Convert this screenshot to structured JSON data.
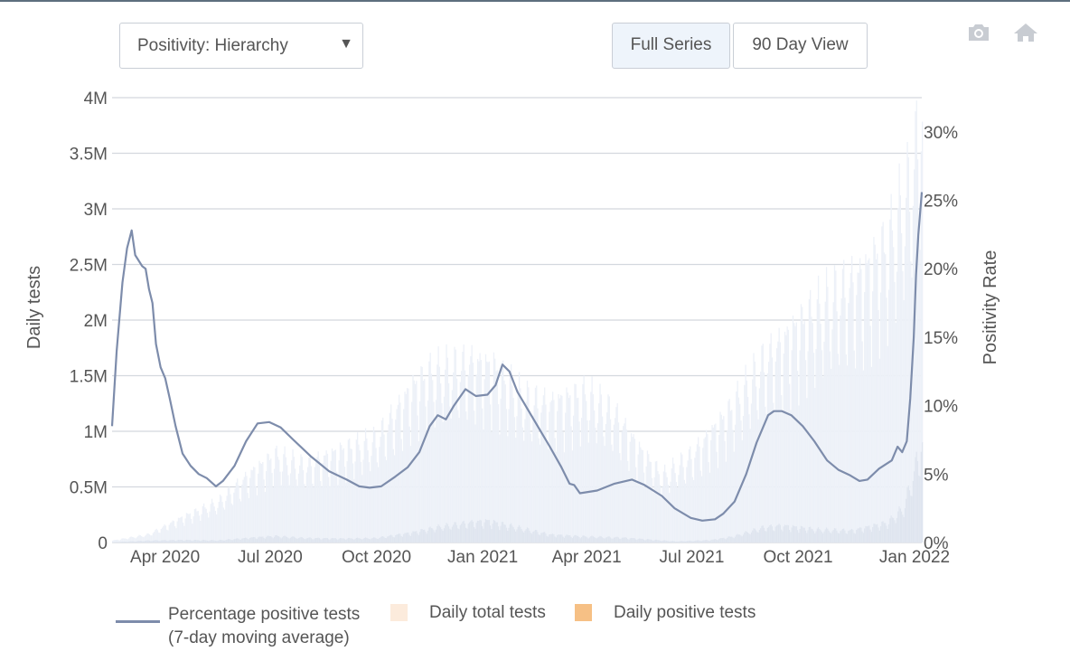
{
  "controls": {
    "dropdown_label": "Positivity: Hierarchy",
    "buttons": [
      {
        "label": "Full Series",
        "active": true
      },
      {
        "label": "90 Day View",
        "active": false
      }
    ],
    "icons": [
      "camera-icon",
      "home-icon"
    ]
  },
  "colors": {
    "positivity_line": "#7d8cab",
    "daily_total_tests": "#fcebdc",
    "daily_positive_tests": "#f6c085",
    "daily_total_bars_render": "#edf1f8",
    "daily_positive_bars_render": "#dfe5ef",
    "grid": "#d4d8de"
  },
  "chart_data": {
    "type": "line",
    "title": "",
    "xlabel": "",
    "ylabel": "Daily tests",
    "y2label": "Positivity Rate",
    "ylim": [
      0,
      4000000
    ],
    "y2lim": [
      0,
      32.5
    ],
    "yticks": [
      "0",
      "0.5M",
      "1M",
      "1.5M",
      "2M",
      "2.5M",
      "3M",
      "3.5M",
      "4M"
    ],
    "y2ticks": [
      "0%",
      "5%",
      "10%",
      "15%",
      "20%",
      "25%",
      "30%"
    ],
    "xticks": [
      "Apr 2020",
      "Jul 2020",
      "Oct 2020",
      "Jan 2021",
      "Apr 2021",
      "Jul 2021",
      "Oct 2021",
      "Jan 2022"
    ],
    "grid": true,
    "legend_position": "bottom",
    "legend": [
      {
        "label": "Percentage positive tests",
        "sublabel": "(7-day moving average)",
        "symbol": "line"
      },
      {
        "label": "Daily total tests",
        "symbol": "square"
      },
      {
        "label": "Daily positive tests",
        "symbol": "square"
      }
    ],
    "series": [
      {
        "name": "Percentage positive tests (7-day moving average)",
        "axis": "right",
        "points": [
          [
            "2020-03-01",
            8.5
          ],
          [
            "2020-03-05",
            14.0
          ],
          [
            "2020-03-10",
            19.0
          ],
          [
            "2020-03-14",
            21.5
          ],
          [
            "2020-03-18",
            22.8
          ],
          [
            "2020-03-21",
            21.0
          ],
          [
            "2020-03-24",
            20.6
          ],
          [
            "2020-03-27",
            20.2
          ],
          [
            "2020-03-30",
            20.0
          ],
          [
            "2020-04-02",
            18.5
          ],
          [
            "2020-04-05",
            17.5
          ],
          [
            "2020-04-08",
            14.5
          ],
          [
            "2020-04-12",
            12.8
          ],
          [
            "2020-04-16",
            12.0
          ],
          [
            "2020-04-20",
            10.5
          ],
          [
            "2020-04-25",
            8.5
          ],
          [
            "2020-05-01",
            6.5
          ],
          [
            "2020-05-08",
            5.6
          ],
          [
            "2020-05-15",
            5.0
          ],
          [
            "2020-05-22",
            4.7
          ],
          [
            "2020-05-30",
            4.1
          ],
          [
            "2020-06-05",
            4.5
          ],
          [
            "2020-06-15",
            5.6
          ],
          [
            "2020-06-25",
            7.4
          ],
          [
            "2020-07-05",
            8.7
          ],
          [
            "2020-07-15",
            8.8
          ],
          [
            "2020-07-25",
            8.4
          ],
          [
            "2020-08-05",
            7.5
          ],
          [
            "2020-08-20",
            6.3
          ],
          [
            "2020-09-05",
            5.2
          ],
          [
            "2020-09-20",
            4.6
          ],
          [
            "2020-10-01",
            4.1
          ],
          [
            "2020-10-10",
            4.0
          ],
          [
            "2020-10-20",
            4.1
          ],
          [
            "2020-11-01",
            4.8
          ],
          [
            "2020-11-12",
            5.5
          ],
          [
            "2020-11-22",
            6.6
          ],
          [
            "2020-12-01",
            8.5
          ],
          [
            "2020-12-08",
            9.3
          ],
          [
            "2020-12-15",
            9.0
          ],
          [
            "2020-12-22",
            10.0
          ],
          [
            "2021-01-01",
            11.2
          ],
          [
            "2021-01-10",
            10.7
          ],
          [
            "2021-01-20",
            10.8
          ],
          [
            "2021-01-27",
            11.5
          ],
          [
            "2021-02-02",
            13.0
          ],
          [
            "2021-02-08",
            12.5
          ],
          [
            "2021-02-15",
            11.0
          ],
          [
            "2021-03-01",
            9.0
          ],
          [
            "2021-03-15",
            7.0
          ],
          [
            "2021-03-25",
            5.5
          ],
          [
            "2021-04-01",
            4.3
          ],
          [
            "2021-04-05",
            4.2
          ],
          [
            "2021-04-10",
            3.6
          ],
          [
            "2021-04-25",
            3.8
          ],
          [
            "2021-05-10",
            4.3
          ],
          [
            "2021-05-25",
            4.6
          ],
          [
            "2021-06-05",
            4.2
          ],
          [
            "2021-06-20",
            3.4
          ],
          [
            "2021-07-01",
            2.5
          ],
          [
            "2021-07-15",
            1.8
          ],
          [
            "2021-07-25",
            1.6
          ],
          [
            "2021-08-05",
            1.7
          ],
          [
            "2021-08-12",
            2.1
          ],
          [
            "2021-08-22",
            3.0
          ],
          [
            "2021-09-01",
            5.0
          ],
          [
            "2021-09-10",
            7.3
          ],
          [
            "2021-09-20",
            9.3
          ],
          [
            "2021-09-25",
            9.6
          ],
          [
            "2021-10-02",
            9.6
          ],
          [
            "2021-10-10",
            9.3
          ],
          [
            "2021-10-20",
            8.5
          ],
          [
            "2021-10-30",
            7.4
          ],
          [
            "2021-11-10",
            6.0
          ],
          [
            "2021-11-20",
            5.3
          ],
          [
            "2021-11-30",
            4.9
          ],
          [
            "2021-12-08",
            4.5
          ],
          [
            "2021-12-15",
            4.6
          ],
          [
            "2021-12-25",
            5.4
          ],
          [
            "2022-01-05",
            6.0
          ],
          [
            "2022-01-10",
            7.0
          ],
          [
            "2022-01-14",
            6.6
          ],
          [
            "2022-01-18",
            7.4
          ],
          [
            "2022-01-21",
            10.5
          ],
          [
            "2022-01-24",
            15.0
          ],
          [
            "2022-01-26",
            19.5
          ],
          [
            "2022-01-28",
            22.5
          ],
          [
            "2022-01-31",
            25.6
          ]
        ]
      },
      {
        "name": "Daily total tests",
        "axis": "left",
        "points": [
          [
            "2020-03-01",
            20000
          ],
          [
            "2020-04-01",
            80000
          ],
          [
            "2020-05-01",
            250000
          ],
          [
            "2020-06-01",
            400000
          ],
          [
            "2020-07-01",
            700000
          ],
          [
            "2020-07-20",
            850000
          ],
          [
            "2020-08-15",
            750000
          ],
          [
            "2020-09-15",
            900000
          ],
          [
            "2020-10-15",
            1000000
          ],
          [
            "2020-11-15",
            1500000
          ],
          [
            "2020-12-01",
            1650000
          ],
          [
            "2020-12-20",
            1700000
          ],
          [
            "2021-01-05",
            1750000
          ],
          [
            "2021-01-25",
            1700000
          ],
          [
            "2021-02-20",
            1400000
          ],
          [
            "2021-03-15",
            1350000
          ],
          [
            "2021-04-15",
            1450000
          ],
          [
            "2021-05-10",
            1250000
          ],
          [
            "2021-06-01",
            900000
          ],
          [
            "2021-06-20",
            650000
          ],
          [
            "2021-07-15",
            850000
          ],
          [
            "2021-08-15",
            1250000
          ],
          [
            "2021-09-15",
            1750000
          ],
          [
            "2021-10-15",
            2100000
          ],
          [
            "2021-11-15",
            2400000
          ],
          [
            "2021-12-10",
            2600000
          ],
          [
            "2022-01-01",
            2900000
          ],
          [
            "2022-01-20",
            3500000
          ],
          [
            "2022-01-31",
            4200000
          ]
        ]
      },
      {
        "name": "Daily positive tests",
        "axis": "left",
        "points": [
          [
            "2020-03-01",
            3000
          ],
          [
            "2020-04-01",
            20000
          ],
          [
            "2020-05-01",
            25000
          ],
          [
            "2020-06-01",
            22000
          ],
          [
            "2020-07-01",
            50000
          ],
          [
            "2020-07-20",
            65000
          ],
          [
            "2020-08-15",
            45000
          ],
          [
            "2020-09-15",
            40000
          ],
          [
            "2020-10-15",
            45000
          ],
          [
            "2020-11-15",
            100000
          ],
          [
            "2020-12-10",
            160000
          ],
          [
            "2021-01-05",
            200000
          ],
          [
            "2021-01-20",
            215000
          ],
          [
            "2021-02-15",
            150000
          ],
          [
            "2021-03-15",
            80000
          ],
          [
            "2021-04-15",
            60000
          ],
          [
            "2021-05-15",
            50000
          ],
          [
            "2021-06-15",
            25000
          ],
          [
            "2021-07-01",
            12000
          ],
          [
            "2021-08-01",
            25000
          ],
          [
            "2021-08-20",
            60000
          ],
          [
            "2021-09-15",
            150000
          ],
          [
            "2021-10-01",
            170000
          ],
          [
            "2021-11-01",
            130000
          ],
          [
            "2021-12-01",
            120000
          ],
          [
            "2022-01-01",
            200000
          ],
          [
            "2022-01-15",
            350000
          ],
          [
            "2022-01-31",
            1000000
          ]
        ]
      }
    ]
  }
}
